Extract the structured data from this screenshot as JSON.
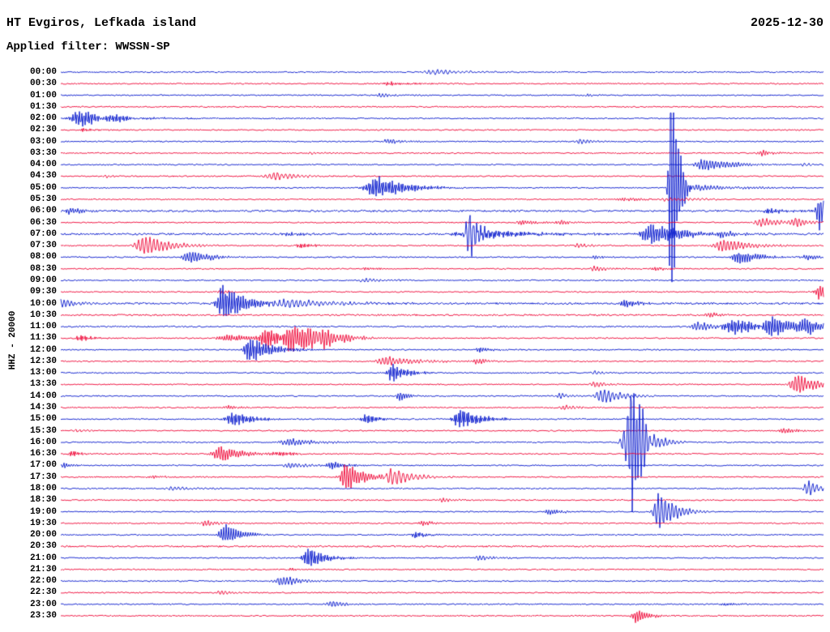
{
  "header": {
    "title": "HT Evgiros, Lefkada island",
    "date": "2025-12-30",
    "filter": "Applied filter: WWSSN-SP"
  },
  "axis": {
    "ylabel": "HHZ - 20000"
  },
  "chart_data": {
    "type": "line",
    "subtype": "helicorder-seismogram",
    "title": "HT Evgiros, Lefkada island",
    "date": "2025-12-30",
    "filter": "WWSSN-SP",
    "ylabel": "HHZ - 20000",
    "row_duration_minutes": 30,
    "time_range": [
      "00:00",
      "23:30"
    ],
    "legend_position": "none",
    "grid": false,
    "colors": {
      "b": "#0014cc",
      "r": "#ee0033"
    },
    "rows": [
      {
        "label": "00:00",
        "c": "b",
        "ev": [
          [
            0.49,
            3,
            25
          ]
        ]
      },
      {
        "label": "00:30",
        "c": "r",
        "ev": [
          [
            0.43,
            2,
            18
          ]
        ]
      },
      {
        "label": "01:00",
        "c": "b",
        "ev": [
          [
            0.42,
            2,
            14
          ],
          [
            0.69,
            1.5,
            10
          ]
        ]
      },
      {
        "label": "01:30",
        "c": "r",
        "ev": []
      },
      {
        "label": "02:00",
        "c": "b",
        "ev": [
          [
            0.025,
            10,
            20
          ],
          [
            0.06,
            3,
            30
          ]
        ]
      },
      {
        "label": "02:30",
        "c": "r",
        "ev": [
          [
            0.03,
            2,
            12
          ]
        ]
      },
      {
        "label": "03:00",
        "c": "b",
        "ev": [
          [
            0.43,
            3,
            12
          ],
          [
            0.68,
            3.5,
            10
          ]
        ]
      },
      {
        "label": "03:30",
        "c": "r",
        "ev": [
          [
            0.92,
            3.5,
            10
          ],
          [
            0.33,
            1.5,
            10
          ]
        ]
      },
      {
        "label": "04:00",
        "c": "b",
        "ev": [
          [
            0.845,
            7,
            22
          ],
          [
            0.975,
            2,
            10
          ]
        ]
      },
      {
        "label": "04:30",
        "c": "r",
        "ev": [
          [
            0.28,
            4.5,
            22
          ],
          [
            0.06,
            1.5,
            10
          ]
        ]
      },
      {
        "label": "05:00",
        "c": "b",
        "ev": [
          [
            0.415,
            12,
            25
          ],
          [
            0.8,
            170,
            5
          ],
          [
            0.82,
            4,
            40
          ]
        ]
      },
      {
        "label": "05:30",
        "c": "r",
        "ev": [
          [
            0.74,
            2,
            15
          ],
          [
            0.8,
            2,
            30
          ]
        ]
      },
      {
        "label": "06:00",
        "c": "b",
        "noise": 1.5,
        "ev": [
          [
            0.012,
            4,
            10
          ],
          [
            0.995,
            22,
            8
          ],
          [
            0.93,
            3,
            15
          ]
        ]
      },
      {
        "label": "06:30",
        "c": "r",
        "ev": [
          [
            0.605,
            3,
            12
          ],
          [
            0.655,
            3,
            10
          ],
          [
            0.92,
            4.5,
            20
          ],
          [
            0.965,
            5,
            12
          ]
        ]
      },
      {
        "label": "07:00",
        "c": "b",
        "noise": 1.5,
        "ev": [
          [
            0.535,
            28,
            7
          ],
          [
            0.545,
            6,
            40
          ],
          [
            0.775,
            12,
            25
          ],
          [
            0.87,
            4,
            12
          ],
          [
            0.3,
            2,
            15
          ]
        ]
      },
      {
        "label": "07:30",
        "c": "r",
        "ev": [
          [
            0.11,
            12,
            20
          ],
          [
            0.87,
            8,
            20
          ],
          [
            0.315,
            3,
            10
          ],
          [
            0.68,
            2,
            12
          ]
        ]
      },
      {
        "label": "08:00",
        "c": "b",
        "ev": [
          [
            0.17,
            8,
            16
          ],
          [
            0.89,
            7,
            16
          ],
          [
            0.98,
            3,
            12
          ],
          [
            0.7,
            2,
            10
          ]
        ]
      },
      {
        "label": "08:30",
        "c": "r",
        "ev": [
          [
            0.7,
            3,
            12
          ],
          [
            0.78,
            2.5,
            10
          ],
          [
            0.4,
            1.5,
            10
          ]
        ]
      },
      {
        "label": "09:00",
        "c": "b",
        "ev": [
          [
            0.4,
            2,
            18
          ]
        ]
      },
      {
        "label": "09:30",
        "c": "r",
        "ev": [
          [
            0.995,
            9,
            10
          ],
          [
            0.21,
            2,
            10
          ]
        ]
      },
      {
        "label": "10:00",
        "c": "b",
        "noise": 1.5,
        "ev": [
          [
            0.0,
            6,
            12
          ],
          [
            0.215,
            22,
            16
          ],
          [
            0.3,
            5,
            40
          ],
          [
            0.74,
            5,
            10
          ]
        ]
      },
      {
        "label": "10:30",
        "c": "r",
        "noise": 1.3,
        "ev": [
          [
            0.85,
            3,
            10
          ]
        ]
      },
      {
        "label": "11:00",
        "c": "b",
        "noise": 1.2,
        "ev": [
          [
            0.835,
            6,
            12
          ],
          [
            0.885,
            8,
            30
          ],
          [
            0.935,
            9,
            30
          ],
          [
            0.98,
            5,
            20
          ]
        ]
      },
      {
        "label": "11:30",
        "c": "r",
        "ev": [
          [
            0.025,
            4,
            10
          ],
          [
            0.27,
            13,
            14
          ],
          [
            0.305,
            15,
            18
          ],
          [
            0.335,
            13,
            20
          ],
          [
            0.22,
            4,
            25
          ]
        ]
      },
      {
        "label": "12:00",
        "c": "b",
        "ev": [
          [
            0.25,
            14,
            16
          ],
          [
            0.55,
            3,
            10
          ]
        ]
      },
      {
        "label": "12:30",
        "c": "r",
        "ev": [
          [
            0.43,
            5,
            25
          ],
          [
            0.545,
            3.5,
            10
          ]
        ]
      },
      {
        "label": "13:00",
        "c": "b",
        "ev": [
          [
            0.435,
            11,
            11
          ],
          [
            0.7,
            2,
            10
          ]
        ]
      },
      {
        "label": "13:30",
        "c": "r",
        "ev": [
          [
            0.7,
            4,
            10
          ],
          [
            0.965,
            11,
            16
          ]
        ]
      },
      {
        "label": "14:00",
        "c": "b",
        "ev": [
          [
            0.445,
            5,
            9
          ],
          [
            0.71,
            9,
            15
          ],
          [
            0.655,
            3,
            8
          ]
        ]
      },
      {
        "label": "14:30",
        "c": "r",
        "ev": [
          [
            0.66,
            3,
            12
          ],
          [
            0.22,
            2,
            15
          ]
        ]
      },
      {
        "label": "15:00",
        "c": "b",
        "ev": [
          [
            0.225,
            8,
            16
          ],
          [
            0.4,
            6,
            10
          ],
          [
            0.525,
            12,
            16
          ]
        ]
      },
      {
        "label": "15:30",
        "c": "r",
        "ev": [
          [
            0.95,
            3,
            12
          ],
          [
            0.02,
            2,
            10
          ]
        ]
      },
      {
        "label": "16:00",
        "c": "b",
        "ev": [
          [
            0.3,
            4,
            25
          ],
          [
            0.745,
            38,
            14
          ],
          [
            0.75,
            130,
            5
          ]
        ]
      },
      {
        "label": "16:30",
        "c": "r",
        "ev": [
          [
            0.015,
            4,
            8
          ],
          [
            0.21,
            8,
            20
          ],
          [
            0.285,
            3,
            15
          ]
        ]
      },
      {
        "label": "17:00",
        "c": "b",
        "ev": [
          [
            0.3,
            4,
            12
          ],
          [
            0.355,
            5,
            10
          ],
          [
            0.005,
            3,
            8
          ]
        ]
      },
      {
        "label": "17:30",
        "c": "r",
        "ev": [
          [
            0.375,
            17,
            13
          ],
          [
            0.435,
            10,
            16
          ],
          [
            0.12,
            2,
            10
          ]
        ]
      },
      {
        "label": "18:00",
        "c": "b",
        "ev": [
          [
            0.98,
            9,
            10
          ],
          [
            0.15,
            2,
            25
          ]
        ]
      },
      {
        "label": "18:30",
        "c": "r",
        "ev": [
          [
            0.5,
            2,
            15
          ]
        ]
      },
      {
        "label": "19:00",
        "c": "b",
        "ev": [
          [
            0.785,
            24,
            12
          ],
          [
            0.64,
            4,
            9
          ]
        ]
      },
      {
        "label": "19:30",
        "c": "r",
        "ev": [
          [
            0.19,
            4,
            10
          ],
          [
            0.475,
            3,
            9
          ]
        ]
      },
      {
        "label": "20:00",
        "c": "b",
        "ev": [
          [
            0.215,
            12,
            13
          ],
          [
            0.465,
            4,
            9
          ]
        ]
      },
      {
        "label": "20:30",
        "c": "r",
        "noise": 1.3,
        "ev": []
      },
      {
        "label": "21:00",
        "c": "b",
        "ev": [
          [
            0.325,
            12,
            13
          ],
          [
            0.55,
            4,
            9
          ]
        ]
      },
      {
        "label": "21:30",
        "c": "r",
        "ev": [
          [
            0.3,
            1.5,
            10
          ]
        ]
      },
      {
        "label": "22:00",
        "c": "b",
        "ev": [
          [
            0.29,
            6,
            15
          ]
        ]
      },
      {
        "label": "22:30",
        "c": "r",
        "ev": [
          [
            0.21,
            3,
            9
          ]
        ]
      },
      {
        "label": "23:00",
        "c": "b",
        "ev": [
          [
            0.355,
            4,
            11
          ],
          [
            0.87,
            2,
            9
          ]
        ]
      },
      {
        "label": "23:30",
        "c": "r",
        "ev": [
          [
            0.755,
            8,
            10
          ]
        ]
      }
    ]
  }
}
